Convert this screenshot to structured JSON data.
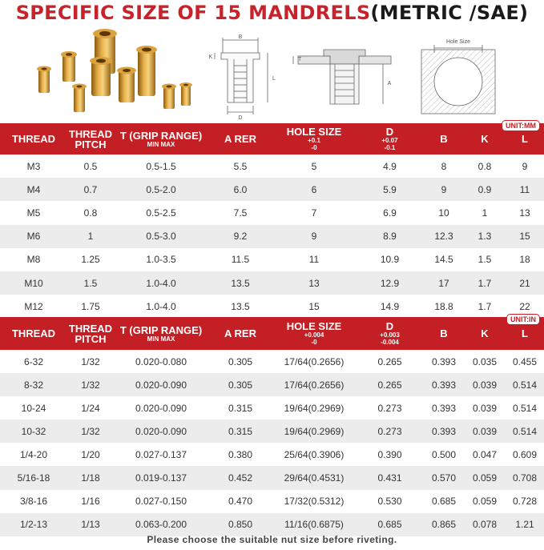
{
  "title": {
    "part1": "SPECIFIC SIZE OF 15 MANDRELS",
    "part2": "(METRIC /SAE)"
  },
  "drawing": {
    "label_b": "B",
    "label_k": "K",
    "label_l": "L",
    "label_d": "D",
    "label_t": "T",
    "label_a": "A",
    "label_hole": "Hole Size"
  },
  "metric": {
    "unit": "UNIT:MM",
    "headers": [
      {
        "label": "THREAD",
        "sub": ""
      },
      {
        "label": "THREAD PITCH",
        "sub": ""
      },
      {
        "label": "T (GRIP RANGE)",
        "sub": "MIN MAX"
      },
      {
        "label": "A RER",
        "sub": ""
      },
      {
        "label": "HOLE SIZE",
        "sub": "+0.1\n-0"
      },
      {
        "label": "D",
        "sub": "+0.07\n-0.1"
      },
      {
        "label": "B",
        "sub": ""
      },
      {
        "label": "K",
        "sub": ""
      },
      {
        "label": "L",
        "sub": ""
      }
    ],
    "rows": [
      [
        "M3",
        "0.5",
        "0.5-1.5",
        "5.5",
        "5",
        "4.9",
        "8",
        "0.8",
        "9"
      ],
      [
        "M4",
        "0.7",
        "0.5-2.0",
        "6.0",
        "6",
        "5.9",
        "9",
        "0.9",
        "11"
      ],
      [
        "M5",
        "0.8",
        "0.5-2.5",
        "7.5",
        "7",
        "6.9",
        "10",
        "1",
        "13"
      ],
      [
        "M6",
        "1",
        "0.5-3.0",
        "9.2",
        "9",
        "8.9",
        "12.3",
        "1.3",
        "15"
      ],
      [
        "M8",
        "1.25",
        "1.0-3.5",
        "11.5",
        "11",
        "10.9",
        "14.5",
        "1.5",
        "18"
      ],
      [
        "M10",
        "1.5",
        "1.0-4.0",
        "13.5",
        "13",
        "12.9",
        "17",
        "1.7",
        "21"
      ],
      [
        "M12",
        "1.75",
        "1.0-4.0",
        "13.5",
        "15",
        "14.9",
        "18.8",
        "1.7",
        "22"
      ]
    ]
  },
  "imperial": {
    "unit": "UNIT:IN",
    "headers": [
      {
        "label": "THREAD",
        "sub": ""
      },
      {
        "label": "THREAD PITCH",
        "sub": ""
      },
      {
        "label": "T (GRIP RANGE)",
        "sub": "MIN MAX"
      },
      {
        "label": "A RER",
        "sub": ""
      },
      {
        "label": "HOLE SIZE",
        "sub": "+0.004\n-0"
      },
      {
        "label": "D",
        "sub": "+0.003\n-0.004"
      },
      {
        "label": "B",
        "sub": ""
      },
      {
        "label": "K",
        "sub": ""
      },
      {
        "label": "L",
        "sub": ""
      }
    ],
    "rows": [
      [
        "6-32",
        "1/32",
        "0.020-0.080",
        "0.305",
        "17/64(0.2656)",
        "0.265",
        "0.393",
        "0.035",
        "0.455"
      ],
      [
        "8-32",
        "1/32",
        "0.020-0.090",
        "0.305",
        "17/64(0.2656)",
        "0.265",
        "0.393",
        "0.039",
        "0.514"
      ],
      [
        "10-24",
        "1/24",
        "0.020-0.090",
        "0.315",
        "19/64(0.2969)",
        "0.273",
        "0.393",
        "0.039",
        "0.514"
      ],
      [
        "10-32",
        "1/32",
        "0.020-0.090",
        "0.315",
        "19/64(0.2969)",
        "0.273",
        "0.393",
        "0.039",
        "0.514"
      ],
      [
        "1/4-20",
        "1/20",
        "0.027-0.137",
        "0.380",
        "25/64(0.3906)",
        "0.390",
        "0.500",
        "0.047",
        "0.609"
      ],
      [
        "5/16-18",
        "1/18",
        "0.019-0.137",
        "0.452",
        "29/64(0.4531)",
        "0.431",
        "0.570",
        "0.059",
        "0.708"
      ],
      [
        "3/8-16",
        "1/16",
        "0.027-0.150",
        "0.470",
        "17/32(0.5312)",
        "0.530",
        "0.685",
        "0.059",
        "0.728"
      ],
      [
        "1/2-13",
        "1/13",
        "0.063-0.200",
        "0.850",
        "11/16(0.6875)",
        "0.685",
        "0.865",
        "0.078",
        "1.21"
      ]
    ]
  },
  "note": "Please choose the suitable nut size before riveting."
}
